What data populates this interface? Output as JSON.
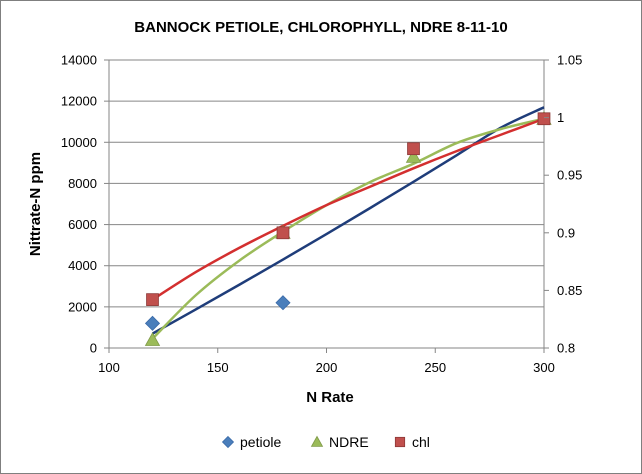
{
  "chart_data": {
    "type": "scatter",
    "title": "BANNOCK PETIOLE, CHLOROPHYLL, NDRE 8-11-10",
    "xlabel": "N Rate",
    "ylabel": "Nittrate-N ppm",
    "y2label": "",
    "xlim": [
      100,
      300
    ],
    "ylim": [
      0,
      14000
    ],
    "y2lim": [
      0.8,
      1.05
    ],
    "x_ticks": [
      "100",
      "150",
      "200",
      "250",
      "300"
    ],
    "y_ticks": [
      "0",
      "2000",
      "4000",
      "6000",
      "8000",
      "10000",
      "12000",
      "14000"
    ],
    "y2_ticks": [
      "0.8",
      "0.85",
      "0.9",
      "0.95",
      "1",
      "1.05"
    ],
    "grid": "horizontal",
    "legend_position": "bottom",
    "series": [
      {
        "name": "petiole",
        "axis": "left",
        "marker": "diamond",
        "color": "#4a7ebb",
        "trend_color": "#1f3d7a",
        "x": [
          120,
          180
        ],
        "y": [
          1200,
          2200
        ],
        "trendline": {
          "x": [
            120,
            140,
            160,
            180,
            200,
            220,
            240,
            260,
            280,
            300
          ],
          "y": [
            700,
            1880,
            3080,
            4300,
            5540,
            6800,
            8080,
            9380,
            10700,
            11700
          ]
        }
      },
      {
        "name": "NDRE",
        "axis": "right",
        "marker": "triangle",
        "color": "#9bbb59",
        "trend_color": "#9bbb59",
        "x": [
          120,
          180,
          240,
          300
        ],
        "y": [
          0.807,
          0.9,
          0.966,
          0.999
        ],
        "trendline": {
          "x": [
            120,
            140,
            160,
            180,
            200,
            220,
            240,
            260,
            280,
            300
          ],
          "y": [
            0.808,
            0.846,
            0.876,
            0.901,
            0.924,
            0.944,
            0.96,
            0.978,
            0.99,
            0.999
          ]
        }
      },
      {
        "name": "chl",
        "axis": "right",
        "marker": "square",
        "color": "#c0504d",
        "trend_color": "#d32f2f",
        "x": [
          120,
          180,
          240,
          300
        ],
        "y": [
          0.842,
          0.9,
          0.973,
          0.999
        ],
        "trendline": {
          "x": [
            120,
            140,
            160,
            180,
            200,
            220,
            240,
            260,
            280,
            300
          ],
          "y": [
            0.842,
            0.866,
            0.887,
            0.906,
            0.924,
            0.94,
            0.956,
            0.971,
            0.985,
            0.999
          ]
        }
      }
    ]
  }
}
